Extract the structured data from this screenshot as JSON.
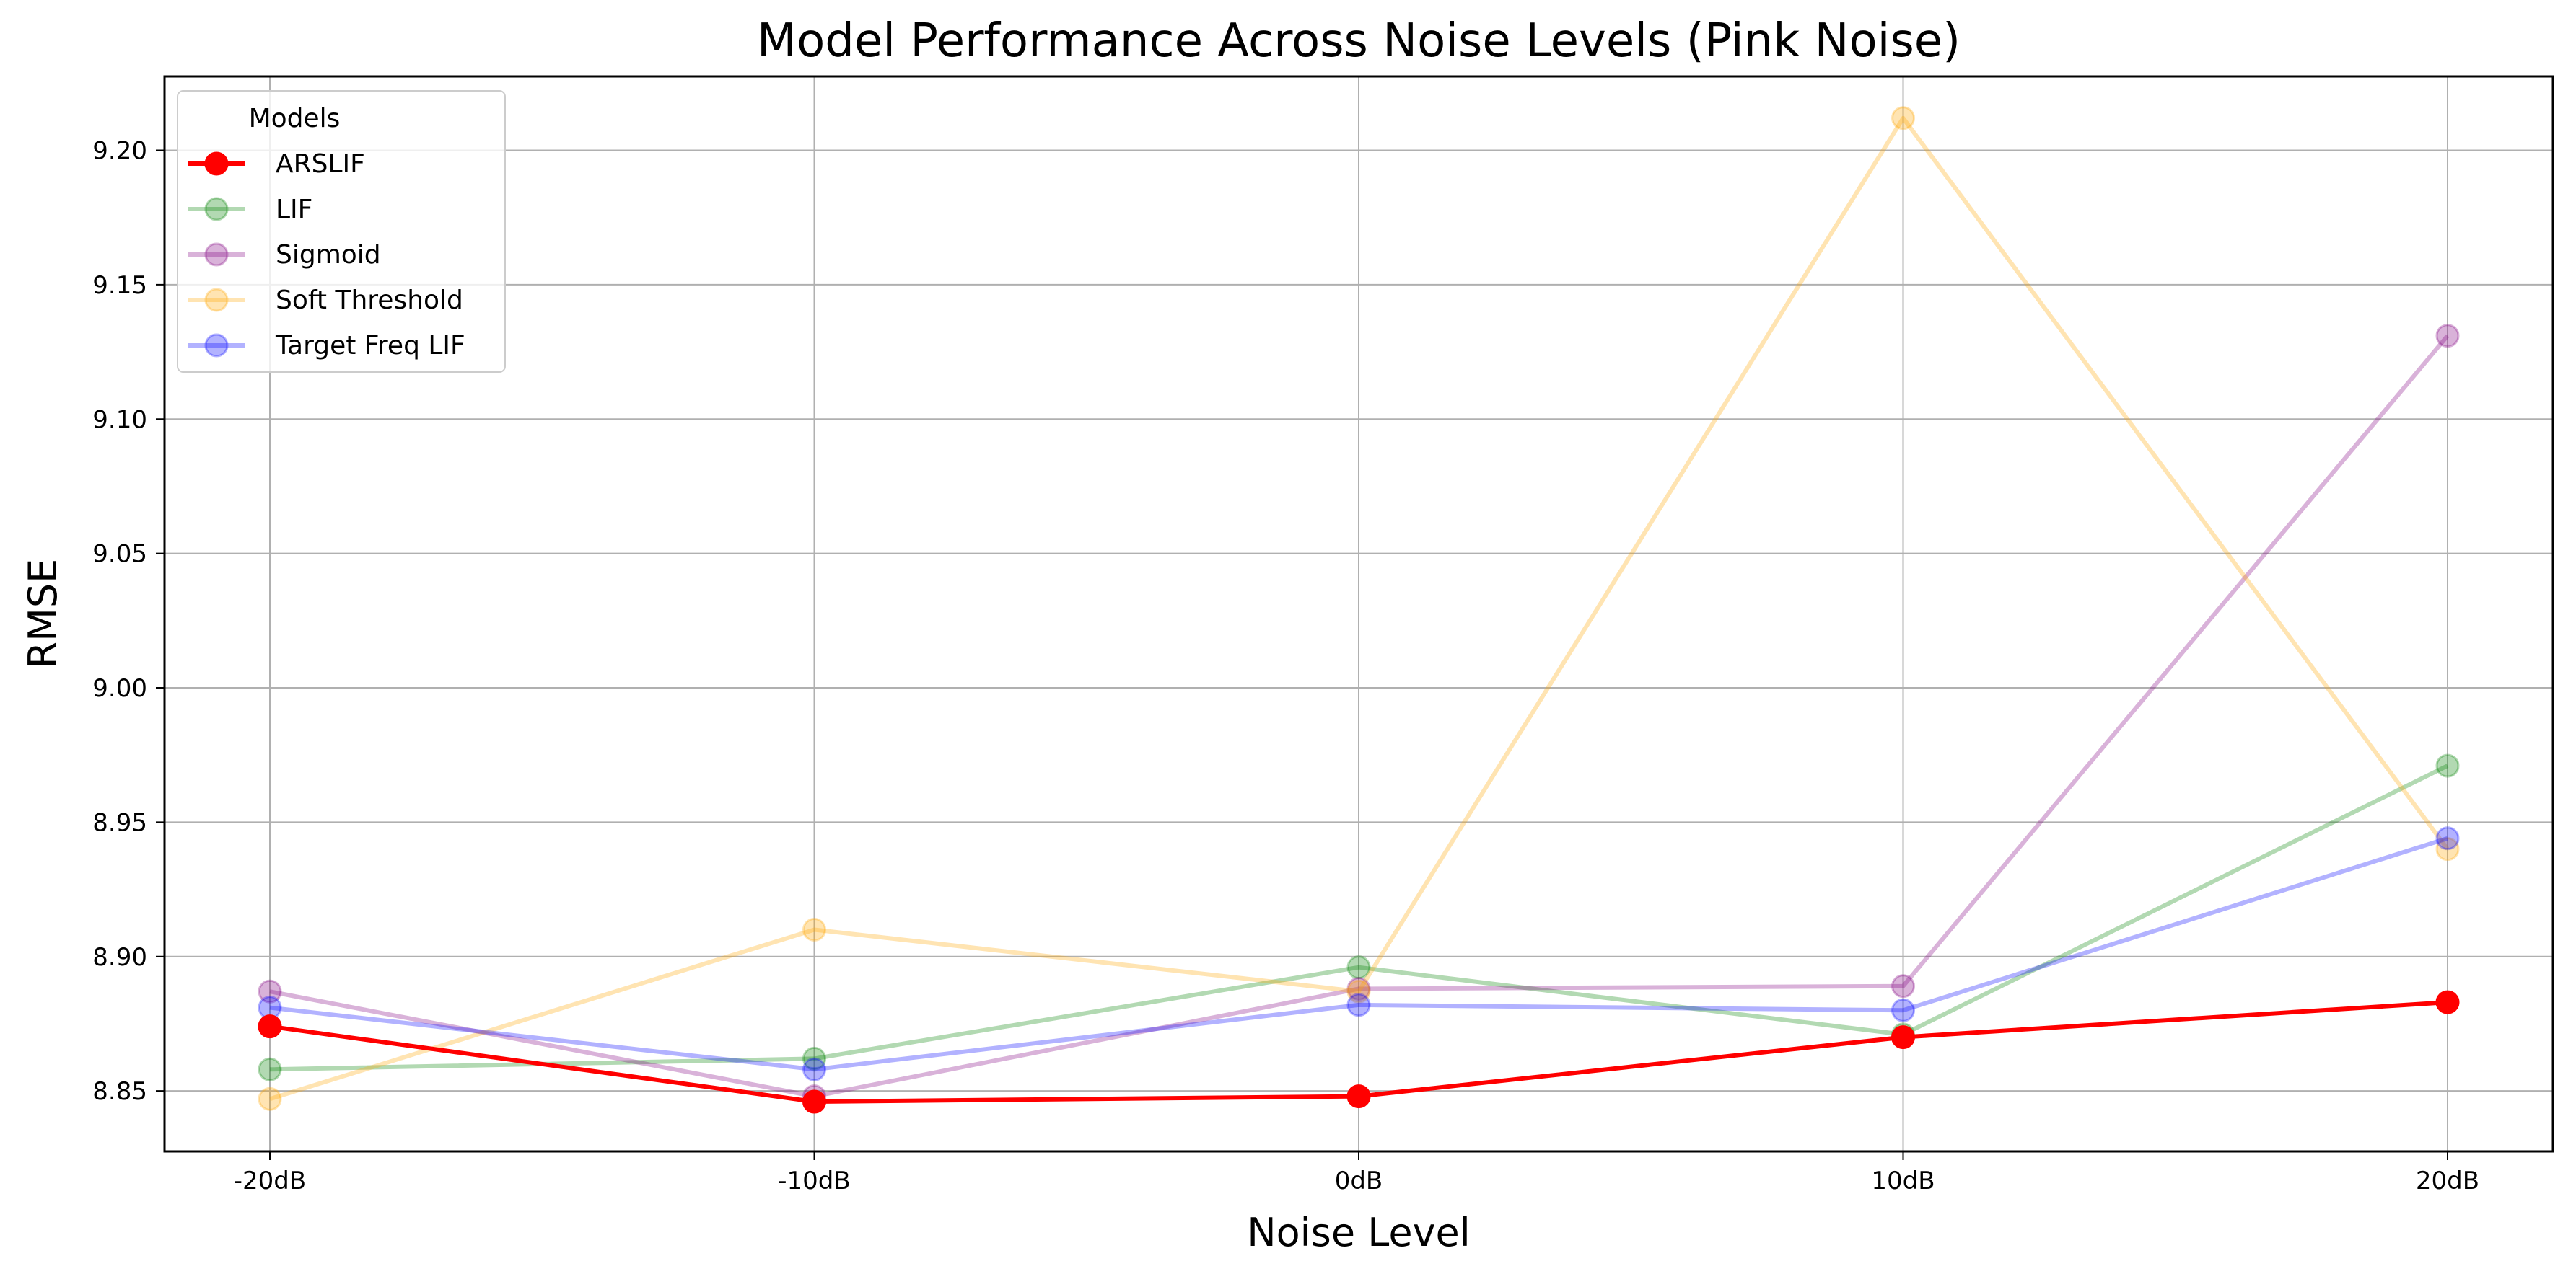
{
  "chart_data": {
    "type": "line",
    "title": "Model Performance Across Noise Levels (Pink Noise)",
    "xlabel": "Noise Level",
    "ylabel": "RMSE",
    "categories": [
      "-20dB",
      "-10dB",
      "0dB",
      "10dB",
      "20dB"
    ],
    "ylim": [
      8.8275,
      9.2275
    ],
    "yticks": [
      "8.85",
      "8.90",
      "8.95",
      "9.00",
      "9.05",
      "9.10",
      "9.15",
      "9.20"
    ],
    "grid": true,
    "legend": {
      "title": "Models",
      "position": "top-left"
    },
    "series": [
      {
        "name": "LIF",
        "color": "#008000",
        "alpha": 0.3,
        "values": [
          8.858,
          8.862,
          8.896,
          8.871,
          8.971
        ]
      },
      {
        "name": "Sigmoid",
        "color": "#800080",
        "alpha": 0.3,
        "values": [
          8.887,
          8.848,
          8.888,
          8.889,
          9.131
        ]
      },
      {
        "name": "Soft Threshold",
        "color": "#ffa500",
        "alpha": 0.3,
        "values": [
          8.847,
          8.91,
          8.887,
          9.212,
          8.94
        ]
      },
      {
        "name": "Target Freq LIF",
        "color": "#0000ff",
        "alpha": 0.3,
        "values": [
          8.881,
          8.858,
          8.882,
          8.88,
          8.944
        ]
      },
      {
        "name": "ARSLIF",
        "color": "#ff0000",
        "alpha": 1.0,
        "values": [
          8.874,
          8.846,
          8.848,
          8.87,
          8.883
        ]
      }
    ],
    "legend_order": [
      "ARSLIF",
      "LIF",
      "Sigmoid",
      "Soft Threshold",
      "Target Freq LIF"
    ]
  }
}
